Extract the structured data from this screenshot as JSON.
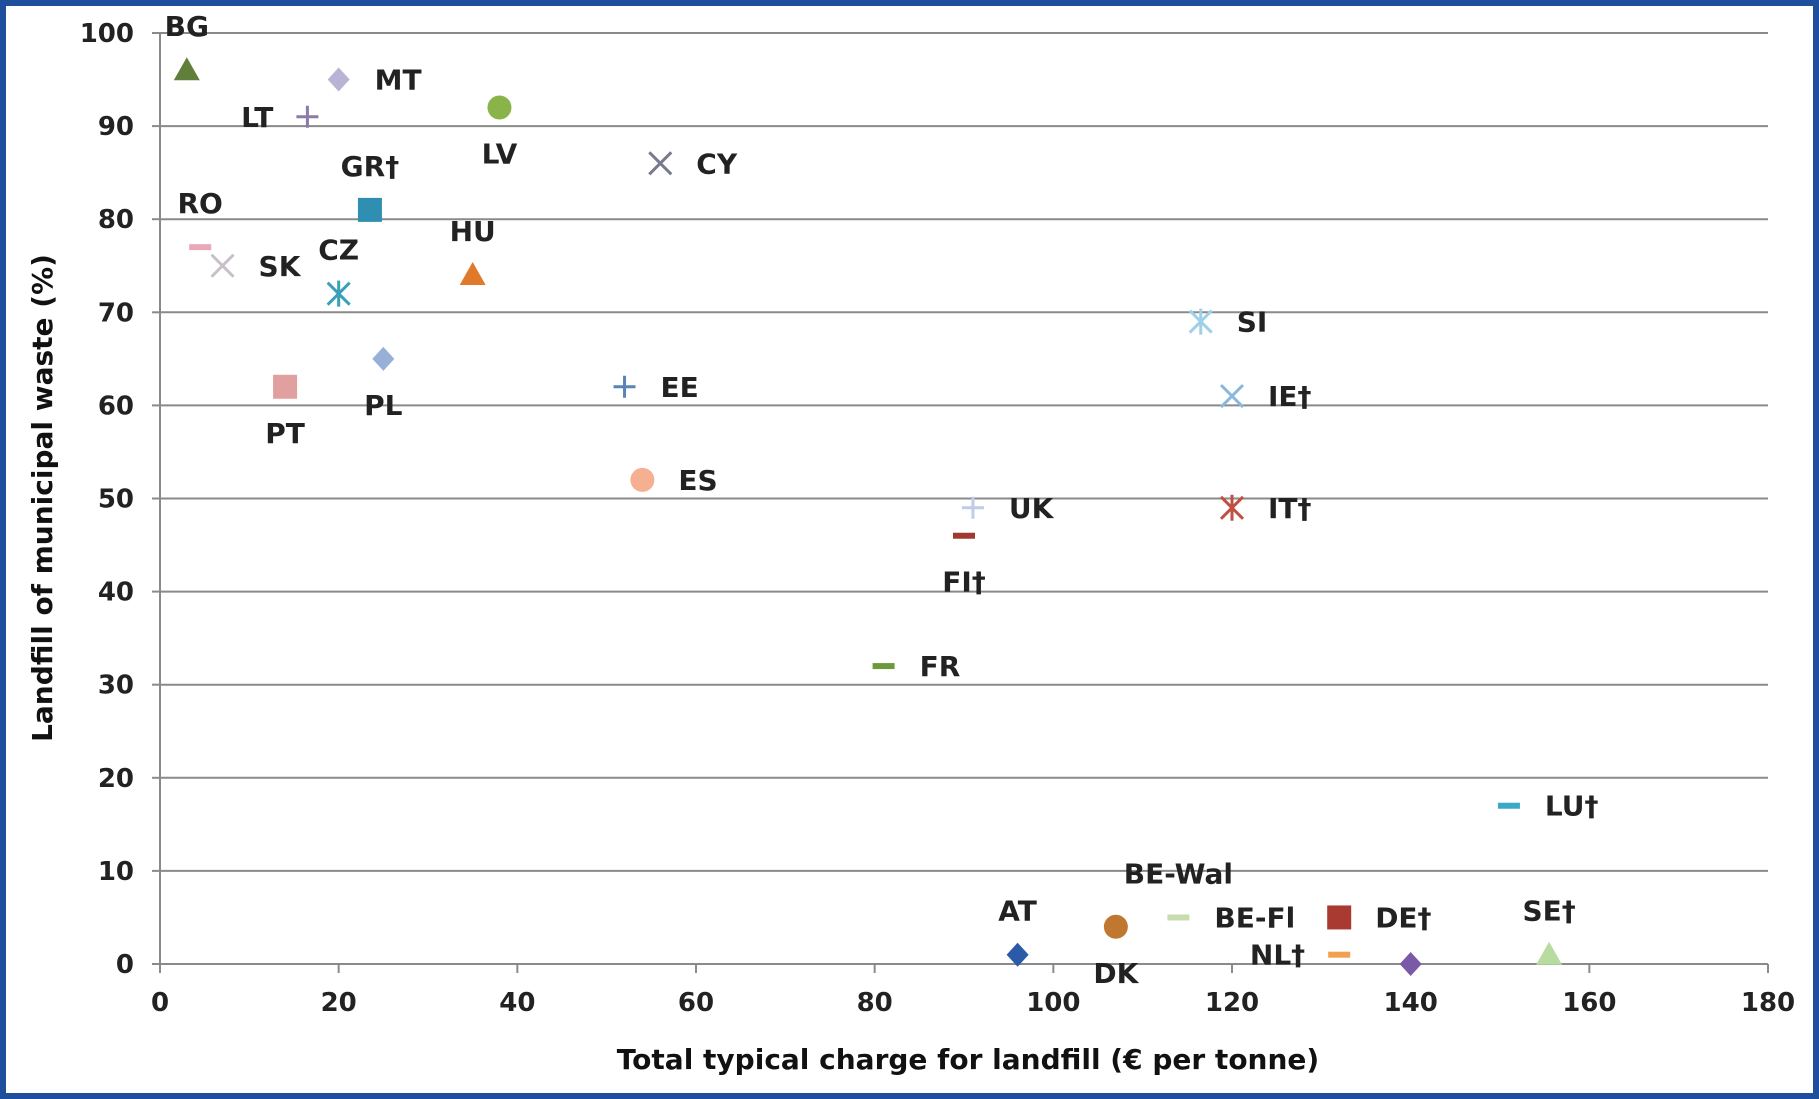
{
  "chart_data": {
    "type": "scatter",
    "title": "",
    "xlabel": "Total typical charge for landfill (€ per tonne)",
    "ylabel": "Landfill of municipal waste (%)",
    "xlim": [
      0,
      180
    ],
    "ylim": [
      0,
      100
    ],
    "xticks": [
      0,
      20,
      40,
      60,
      80,
      100,
      120,
      140,
      160,
      180
    ],
    "yticks": [
      0,
      10,
      20,
      30,
      40,
      50,
      60,
      70,
      80,
      90,
      100
    ],
    "grid": "horizontal",
    "legend": "none",
    "points": [
      {
        "label": "BG",
        "x": 3,
        "y": 96,
        "marker": "triangle",
        "color": "#5f7f3a",
        "label_pos": "above"
      },
      {
        "label": "MT",
        "x": 20,
        "y": 95,
        "marker": "diamond",
        "color": "#b8b4d6",
        "label_pos": "right"
      },
      {
        "label": "LT",
        "x": 16.5,
        "y": 91,
        "marker": "plus",
        "color": "#8b7aa8",
        "label_pos": "left"
      },
      {
        "label": "LV",
        "x": 38,
        "y": 92,
        "marker": "circle",
        "color": "#8ab44a",
        "label_pos": "below"
      },
      {
        "label": "CY",
        "x": 56,
        "y": 86,
        "marker": "x",
        "color": "#777a8c",
        "label_pos": "right"
      },
      {
        "label": "GR†",
        "x": 23.5,
        "y": 81,
        "marker": "square",
        "color": "#2f8fb0",
        "label_pos": "above"
      },
      {
        "label": "RO",
        "x": 4.5,
        "y": 77,
        "marker": "dash",
        "color": "#e8a8b8",
        "label_pos": "above"
      },
      {
        "label": "SK",
        "x": 7,
        "y": 75,
        "marker": "x",
        "color": "#c8c0c8",
        "label_pos": "right"
      },
      {
        "label": "HU",
        "x": 35,
        "y": 74,
        "marker": "triangle",
        "color": "#e07a2a",
        "label_pos": "above"
      },
      {
        "label": "CZ",
        "x": 20,
        "y": 72,
        "marker": "asterisk",
        "color": "#3aa0b8",
        "label_pos": "above"
      },
      {
        "label": "SI",
        "x": 116.5,
        "y": 69,
        "marker": "asterisk",
        "color": "#9ed0e8",
        "label_pos": "right"
      },
      {
        "label": "PL",
        "x": 25,
        "y": 65,
        "marker": "diamond",
        "color": "#98b0d8",
        "label_pos": "below"
      },
      {
        "label": "PT",
        "x": 14,
        "y": 62,
        "marker": "square",
        "color": "#e0a0a0",
        "label_pos": "below"
      },
      {
        "label": "EE",
        "x": 52,
        "y": 62,
        "marker": "plus",
        "color": "#5a84b8",
        "label_pos": "right"
      },
      {
        "label": "IE†",
        "x": 120,
        "y": 61,
        "marker": "x",
        "color": "#8ab8e0",
        "label_pos": "right"
      },
      {
        "label": "ES",
        "x": 54,
        "y": 52,
        "marker": "circle",
        "color": "#f4b090",
        "label_pos": "right"
      },
      {
        "label": "UK",
        "x": 91,
        "y": 49,
        "marker": "plus",
        "color": "#c0cce8",
        "label_pos": "right"
      },
      {
        "label": "IT†",
        "x": 120,
        "y": 49,
        "marker": "asterisk",
        "color": "#c05040",
        "label_pos": "right"
      },
      {
        "label": "FI†",
        "x": 90,
        "y": 46,
        "marker": "dash",
        "color": "#a03a30",
        "label_pos": "below"
      },
      {
        "label": "FR",
        "x": 81,
        "y": 32,
        "marker": "dash",
        "color": "#6a9a3a",
        "label_pos": "right"
      },
      {
        "label": "LU†",
        "x": 151,
        "y": 17,
        "marker": "dash",
        "color": "#3aa8c8",
        "label_pos": "right"
      },
      {
        "label": "BE-Wal",
        "x": 114,
        "y": 5,
        "marker": "dash",
        "color": "#c8dcb0",
        "label_pos": "above"
      },
      {
        "label": "BE-Fl",
        "x": 114,
        "y": 5,
        "marker": "none",
        "color": "#222222",
        "label_pos": "right"
      },
      {
        "label": "DE†",
        "x": 132,
        "y": 5,
        "marker": "square",
        "color": "#a83a32",
        "label_pos": "right"
      },
      {
        "label": "DK",
        "x": 107,
        "y": 4,
        "marker": "circle",
        "color": "#c07830",
        "label_pos": "below"
      },
      {
        "label": "AT",
        "x": 96,
        "y": 1,
        "marker": "diamond",
        "color": "#2a5aa8",
        "label_pos": "above"
      },
      {
        "label": "NL†",
        "x": 132,
        "y": 1,
        "marker": "dash",
        "color": "#f0a050",
        "label_pos": "left"
      },
      {
        "label": "SE†",
        "x": 155.5,
        "y": 1,
        "marker": "triangle",
        "color": "#b8dca0",
        "label_pos": "above"
      },
      {
        "label": "",
        "x": 140,
        "y": 0,
        "marker": "diamond",
        "color": "#7a5aa8",
        "label_pos": "none"
      }
    ]
  }
}
